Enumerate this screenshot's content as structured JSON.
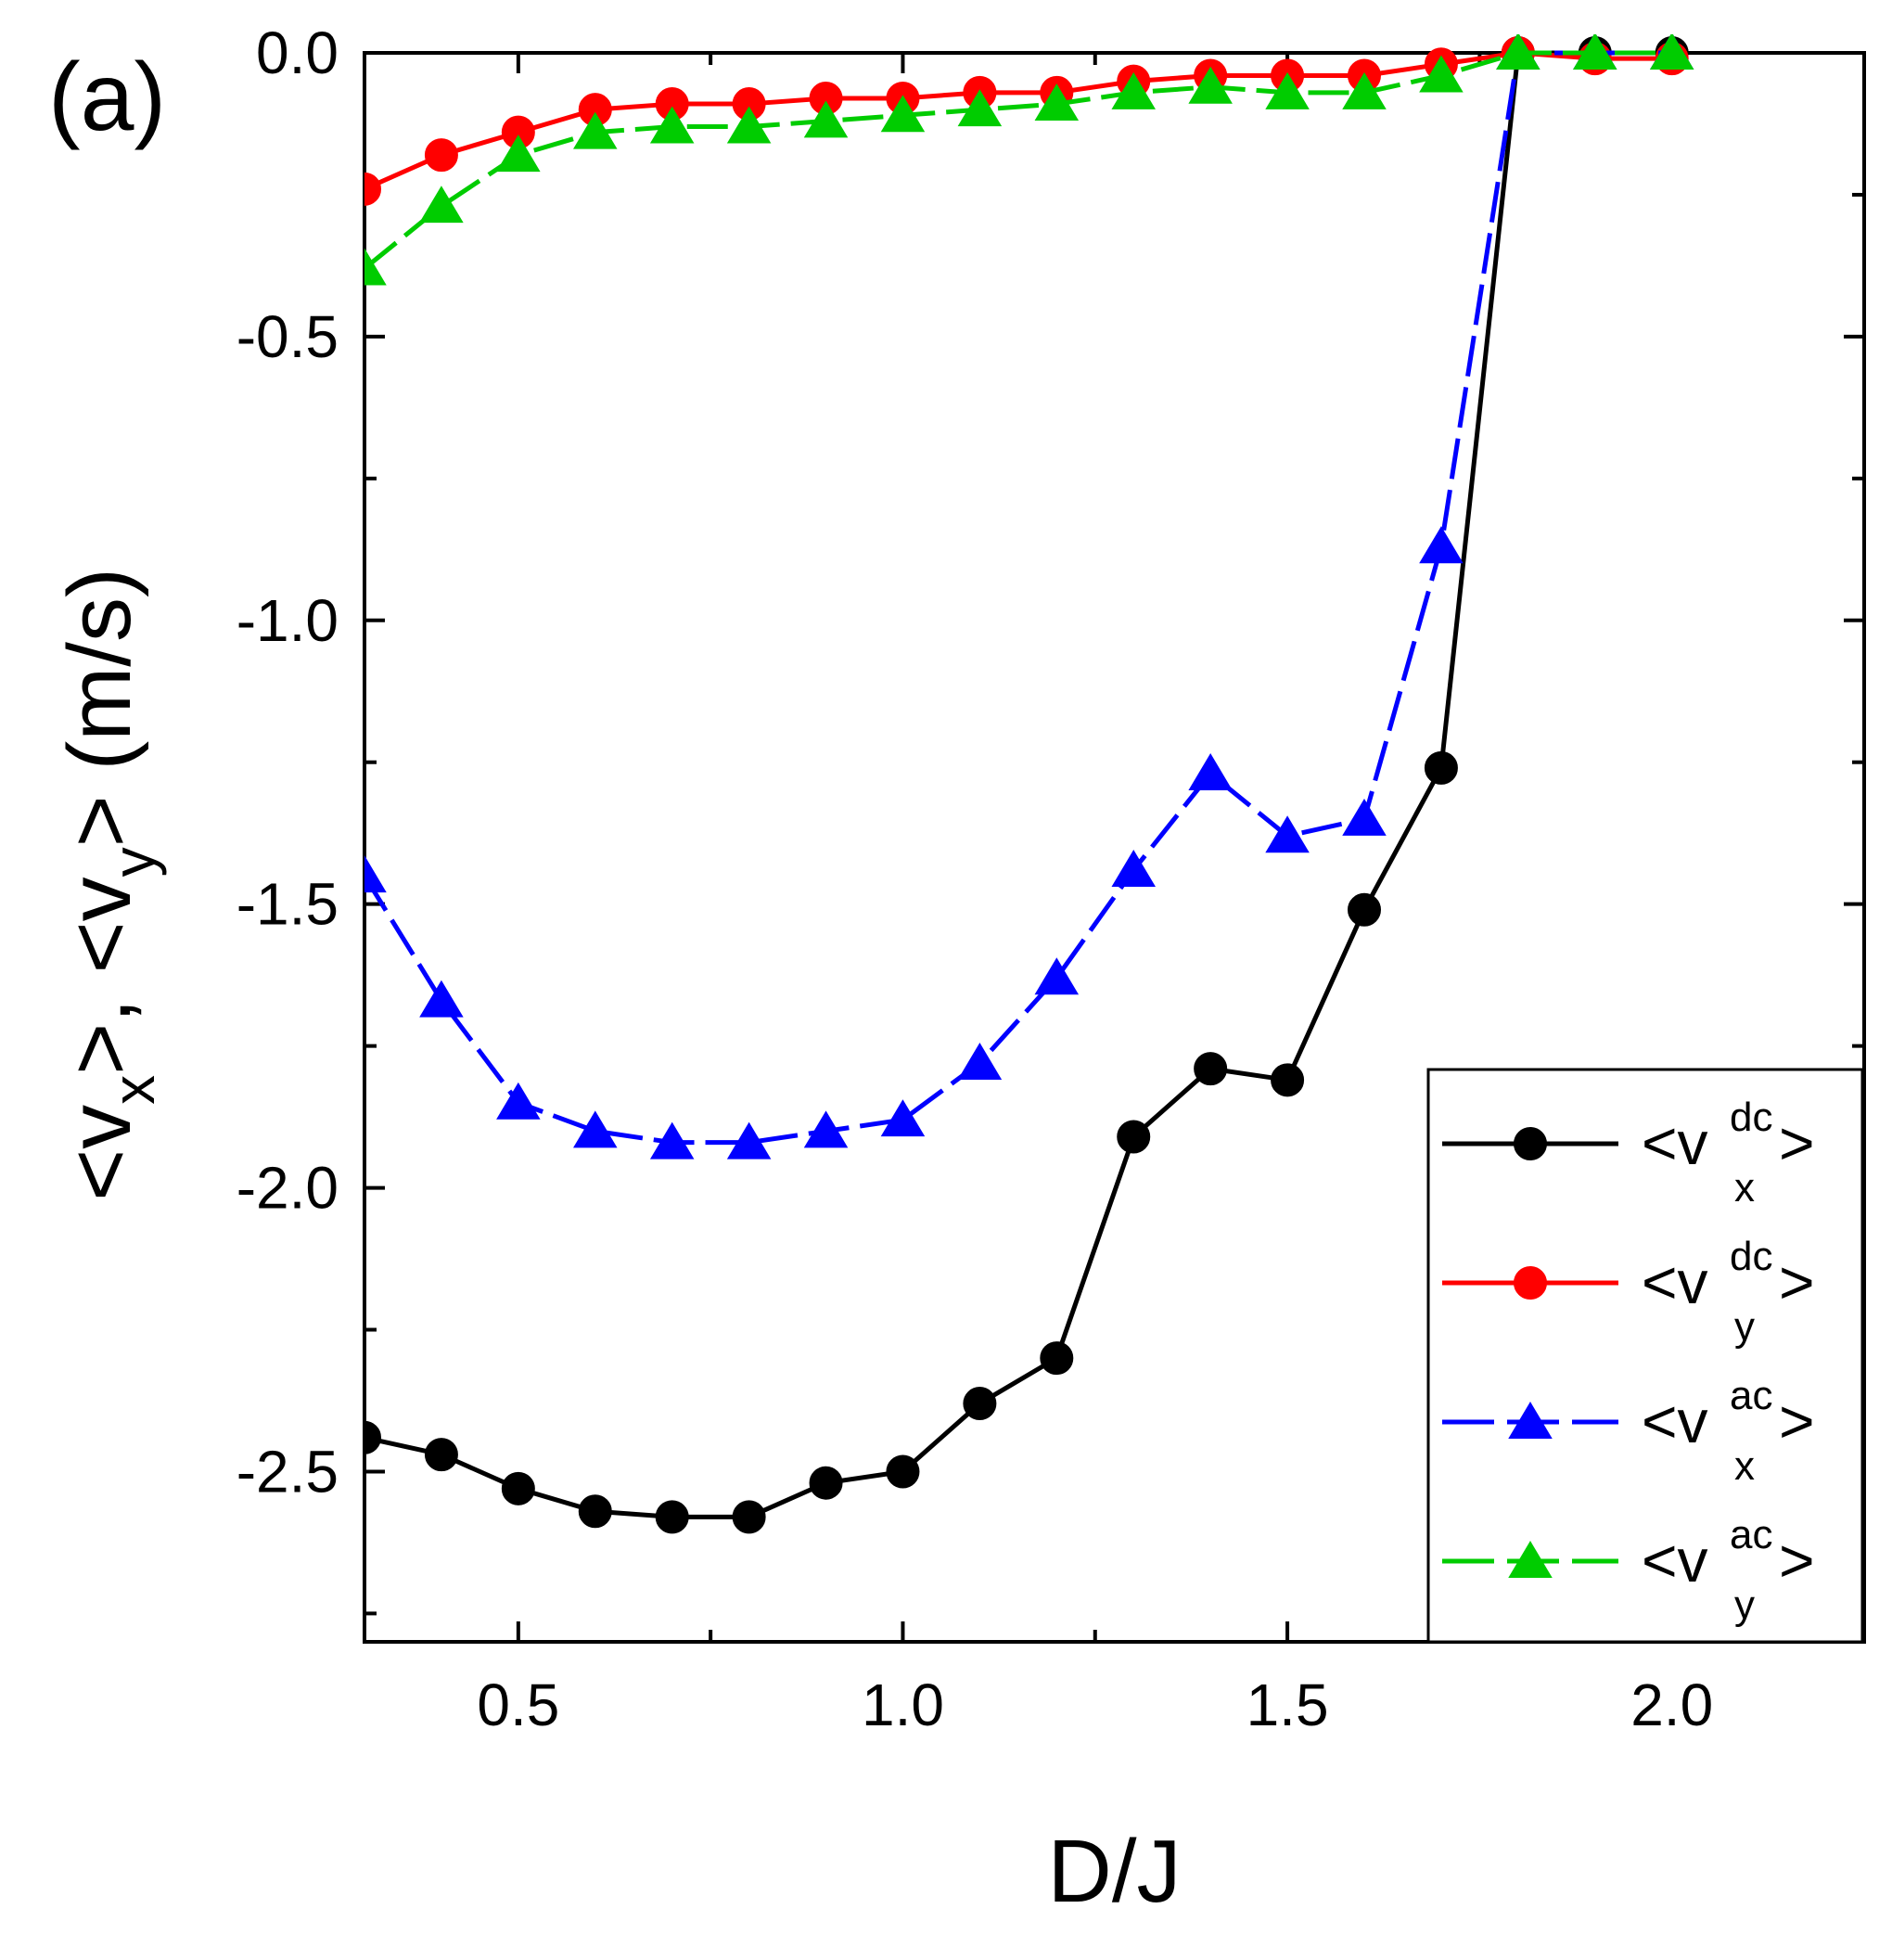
{
  "panel_label": "(a)",
  "chart_data": {
    "type": "line",
    "title": "",
    "xlabel": "D/J",
    "ylabel_parts": {
      "open_x": "<v",
      "sub_x": "x",
      "close_x": ">",
      "separator": ", ",
      "open_y": "<v",
      "sub_y": "y",
      "close_y": ">",
      "unit": " (m/s)"
    },
    "xlim": [
      0.3,
      2.25
    ],
    "ylim": [
      -2.8,
      0.0
    ],
    "xticks": [
      0.5,
      1.0,
      1.5,
      2.0
    ],
    "xtick_labels": [
      "0.5",
      "1.0",
      "1.5",
      "2.0"
    ],
    "yticks": [
      0.0,
      -0.5,
      -1.0,
      -1.5,
      -2.0,
      -2.5
    ],
    "ytick_labels": [
      "0.0",
      "-0.5",
      "-1.0",
      "-1.5",
      "-2.0",
      "-2.5"
    ],
    "grid": false,
    "legend_position": "bottom-right",
    "x": [
      0.3,
      0.4,
      0.5,
      0.6,
      0.7,
      0.8,
      0.9,
      1.0,
      1.1,
      1.2,
      1.3,
      1.4,
      1.5,
      1.6,
      1.7,
      1.8,
      1.9,
      2.0
    ],
    "series": [
      {
        "key": "vx_dc",
        "legend_base": "<v",
        "legend_sup": "dc",
        "legend_sub": "x",
        "legend_close": ">",
        "color": "#000000",
        "marker": "circle",
        "dash": "solid",
        "values": [
          -2.44,
          -2.47,
          -2.53,
          -2.57,
          -2.58,
          -2.58,
          -2.52,
          -2.5,
          -2.38,
          -2.3,
          -1.91,
          -1.79,
          -1.81,
          -1.51,
          -1.26,
          0.0,
          0.0,
          0.0
        ]
      },
      {
        "key": "vy_dc",
        "legend_base": "<v",
        "legend_sup": "dc",
        "legend_sub": "y",
        "legend_close": ">",
        "color": "#ff0000",
        "marker": "circle",
        "dash": "solid",
        "values": [
          -0.24,
          -0.18,
          -0.14,
          -0.1,
          -0.09,
          -0.09,
          -0.08,
          -0.08,
          -0.07,
          -0.07,
          -0.05,
          -0.04,
          -0.04,
          -0.04,
          -0.02,
          0.0,
          -0.01,
          -0.01
        ]
      },
      {
        "key": "vx_ac",
        "legend_base": "<v",
        "legend_sup": "ac",
        "legend_sub": "x",
        "legend_close": ">",
        "color": "#0000ff",
        "marker": "triangle",
        "dash": "dashed",
        "values": [
          -1.45,
          -1.67,
          -1.85,
          -1.9,
          -1.92,
          -1.92,
          -1.9,
          -1.88,
          -1.78,
          -1.63,
          -1.44,
          -1.27,
          -1.38,
          -1.35,
          -0.87,
          0.0,
          0.0,
          0.0
        ]
      },
      {
        "key": "vy_ac",
        "legend_base": "<v",
        "legend_sup": "ac",
        "legend_sub": "y",
        "legend_close": ">",
        "color": "#00cc00",
        "marker": "triangle",
        "dash": "dashed",
        "values": [
          -0.38,
          -0.27,
          -0.18,
          -0.14,
          -0.13,
          -0.13,
          -0.12,
          -0.11,
          -0.1,
          -0.09,
          -0.07,
          -0.06,
          -0.07,
          -0.07,
          -0.04,
          0.0,
          0.0,
          0.0
        ]
      }
    ]
  }
}
